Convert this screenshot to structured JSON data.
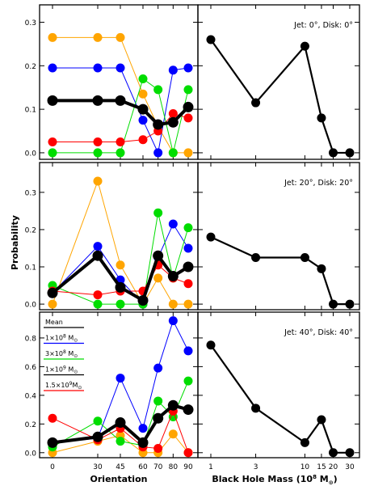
{
  "figure": {
    "left_ylabel": "Probability",
    "left_xlabel": "Orientation",
    "right_xlabel_main": "Black Hole Mass (10",
    "right_xlabel_exp": "8",
    "right_xlabel_tail": " M",
    "right_xlabel_sub": "⊙",
    "right_xlabel_close": ")"
  },
  "legend": {
    "entries": [
      {
        "label": "Mean",
        "color": "#000000"
      },
      {
        "label": "1×10",
        "exp": "8",
        "unit": " M",
        "sub": "⊙",
        "color": "#0000ff"
      },
      {
        "label": "3×10",
        "exp": "8",
        "unit": " M",
        "sub": "⊙",
        "color": "#00dd00"
      },
      {
        "label": "1×10",
        "exp": "9",
        "unit": " M",
        "sub": "⊙",
        "color": "#000000"
      },
      {
        "label": "1.5×10",
        "exp": "9",
        "unit": "M",
        "sub": "⊙",
        "color": "#ff0000"
      }
    ]
  },
  "chart_data": [
    {
      "type": "line",
      "panel": "top-left",
      "x": [
        0,
        30,
        45,
        60,
        70,
        80,
        90
      ],
      "xticks": [
        "0",
        "30",
        "45",
        "60",
        "70",
        "80",
        "90"
      ],
      "ylim": [
        -0.015,
        0.34
      ],
      "yticks": [
        "0.0",
        "0.1",
        "0.2",
        "0.3"
      ],
      "series": [
        {
          "color": "#ffa500",
          "values": [
            0.265,
            0.265,
            0.265,
            0.135,
            0.06,
            0.0,
            0.0
          ]
        },
        {
          "color": "#0000ff",
          "values": [
            0.195,
            0.195,
            0.195,
            0.075,
            0.0,
            0.19,
            0.195
          ]
        },
        {
          "color": "#00dd00",
          "values": [
            0.0,
            0.0,
            0.0,
            0.17,
            0.145,
            0.0,
            0.145
          ]
        },
        {
          "color": "#ff0000",
          "values": [
            0.025,
            0.025,
            0.025,
            0.03,
            0.05,
            0.09,
            0.08
          ]
        },
        {
          "color": "#000000",
          "values": [
            0.12,
            0.12,
            0.12,
            0.1,
            0.065,
            0.07,
            0.105
          ],
          "thick": true
        }
      ]
    },
    {
      "type": "line",
      "panel": "middle-left",
      "x": [
        0,
        30,
        45,
        60,
        70,
        80,
        90
      ],
      "xticks": [
        "0",
        "30",
        "45",
        "60",
        "70",
        "80",
        "90"
      ],
      "ylim": [
        -0.015,
        0.38
      ],
      "yticks": [
        "0.0",
        "0.1",
        "0.2",
        "0.3"
      ],
      "series": [
        {
          "color": "#ffa500",
          "values": [
            0.0,
            0.33,
            0.105,
            0.0,
            0.07,
            0.0,
            0.0
          ]
        },
        {
          "color": "#0000ff",
          "values": [
            0.03,
            0.155,
            0.065,
            0.0,
            0.125,
            0.215,
            0.15
          ]
        },
        {
          "color": "#00dd00",
          "values": [
            0.05,
            0.0,
            0.0,
            0.0,
            0.245,
            0.07,
            0.205
          ]
        },
        {
          "color": "#ff0000",
          "values": [
            0.035,
            0.025,
            0.035,
            0.035,
            0.105,
            0.07,
            0.055
          ]
        },
        {
          "color": "#000000",
          "values": [
            0.03,
            0.13,
            0.045,
            0.01,
            0.13,
            0.075,
            0.1
          ],
          "thick": true
        }
      ]
    },
    {
      "type": "line",
      "panel": "bottom-left",
      "x": [
        0,
        30,
        45,
        60,
        70,
        80,
        90
      ],
      "xticks": [
        "0",
        "30",
        "45",
        "60",
        "70",
        "80",
        "90"
      ],
      "ylim": [
        -0.035,
        0.98
      ],
      "yticks": [
        "0.0",
        "0.2",
        "0.4",
        "0.6",
        "0.8"
      ],
      "series": [
        {
          "color": "#ffa500",
          "values": [
            0.0,
            0.08,
            0.12,
            0.0,
            0.0,
            0.13,
            0.0
          ]
        },
        {
          "color": "#0000ff",
          "values": [
            0.07,
            0.1,
            0.52,
            0.17,
            0.59,
            0.92,
            0.71
          ]
        },
        {
          "color": "#00dd00",
          "values": [
            0.04,
            0.22,
            0.08,
            0.05,
            0.36,
            0.25,
            0.5
          ]
        },
        {
          "color": "#ff0000",
          "values": [
            0.24,
            0.09,
            0.17,
            0.04,
            0.03,
            0.29,
            0.0
          ]
        },
        {
          "color": "#000000",
          "values": [
            0.07,
            0.11,
            0.21,
            0.07,
            0.24,
            0.33,
            0.3
          ],
          "thick": true
        }
      ]
    },
    {
      "type": "line",
      "panel": "top-right",
      "annotation": "Jet:  0°, Disk:  0°",
      "x": [
        1,
        3,
        10,
        15,
        20,
        30
      ],
      "xticks": [
        "1",
        "3",
        "10",
        "15",
        "20",
        "30"
      ],
      "xscale": "log",
      "ylim": [
        -0.015,
        0.34
      ],
      "values": [
        0.26,
        0.115,
        0.245,
        0.08,
        0.0,
        0.0
      ]
    },
    {
      "type": "line",
      "panel": "middle-right",
      "annotation": "Jet: 20°, Disk: 20°",
      "x": [
        1,
        3,
        10,
        15,
        20,
        30
      ],
      "xticks": [
        "1",
        "3",
        "10",
        "15",
        "20",
        "30"
      ],
      "xscale": "log",
      "ylim": [
        -0.015,
        0.38
      ],
      "values": [
        0.18,
        0.125,
        0.125,
        0.095,
        0.0,
        0.0
      ]
    },
    {
      "type": "line",
      "panel": "bottom-right",
      "annotation": "Jet: 40°, Disk: 40°",
      "x": [
        1,
        3,
        10,
        15,
        20,
        30
      ],
      "xticks": [
        "1",
        "3",
        "10",
        "15",
        "20",
        "30"
      ],
      "xscale": "log",
      "ylim": [
        -0.035,
        0.98
      ],
      "values": [
        0.75,
        0.31,
        0.07,
        0.23,
        0.0,
        0.0
      ]
    }
  ]
}
